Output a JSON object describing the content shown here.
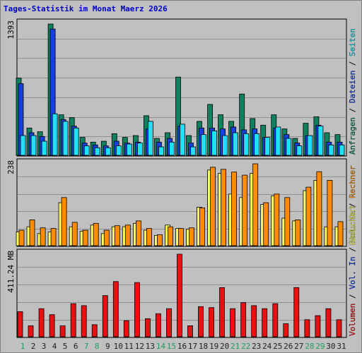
{
  "chart_data": {
    "type": "bar",
    "title": "Tages-Statistik im Monat Maerz 2026",
    "colors": {
      "title": "#0000cc",
      "background": "#c0c0c0",
      "plot_bg": "#c0c0c0",
      "frame": "#000000",
      "grid": "#909090",
      "anfragen": "#0f8060",
      "dateien": "#1540e0",
      "seiten": "#20e0f8",
      "besuche": "#ffff60",
      "rechner": "#ff8c00",
      "volumen": "#e81010",
      "weekday_label": "#202020",
      "weekend_label": "#20a060"
    },
    "x": [
      "1",
      "2",
      "3",
      "4",
      "5",
      "6",
      "7",
      "8",
      "9",
      "10",
      "11",
      "12",
      "13",
      "14",
      "15",
      "16",
      "17",
      "18",
      "19",
      "20",
      "21",
      "22",
      "23",
      "24",
      "25",
      "26",
      "27",
      "28",
      "29",
      "30",
      "31"
    ],
    "weekend_days": [
      "1",
      "7",
      "8",
      "14",
      "15",
      "21",
      "22",
      "28",
      "29"
    ],
    "panels": [
      {
        "id": "traffic",
        "ytick": "1393",
        "ymax": 1393,
        "legend": [
          {
            "text": "Anfragen",
            "color": "#0f8060"
          },
          {
            "text": "Dateien",
            "color": "#1540e0"
          },
          {
            "text": "Seiten",
            "color": "#20e0f8"
          }
        ],
        "series": [
          {
            "name": "Anfragen",
            "color": "#0f8060",
            "values": [
              820,
              290,
              250,
              1393,
              430,
              400,
              190,
              140,
              150,
              230,
              190,
              210,
              420,
              180,
              240,
              830,
              210,
              360,
              540,
              430,
              360,
              650,
              390,
              320,
              430,
              280,
              180,
              340,
              410,
              240,
              220
            ]
          },
          {
            "name": "Dateien",
            "color": "#1540e0",
            "values": [
              760,
              240,
              200,
              1340,
              380,
              310,
              130,
              110,
              100,
              150,
              130,
              140,
              280,
              140,
              180,
              310,
              130,
              290,
              290,
              280,
              300,
              270,
              280,
              190,
              290,
              220,
              130,
              210,
              320,
              140,
              140
            ]
          },
          {
            "name": "Seiten",
            "color": "#20e0f8",
            "values": [
              210,
              210,
              150,
              440,
              360,
              290,
              100,
              80,
              80,
              100,
              120,
              130,
              360,
              90,
              140,
              330,
              90,
              220,
              260,
              210,
              240,
              230,
              230,
              190,
              300,
              180,
              100,
              210,
              310,
              110,
              110
            ]
          }
        ]
      },
      {
        "id": "visits",
        "ytick": "238",
        "ymax": 238,
        "legend": [
          {
            "text": "Besuche",
            "color": "#ffff60"
          },
          {
            "text": "Rechner",
            "color": "#ff8c00"
          }
        ],
        "series": [
          {
            "name": "Besuche",
            "color": "#ffff60",
            "values": [
              40,
              55,
              35,
              40,
              125,
              55,
              42,
              60,
              35,
              55,
              55,
              65,
              45,
              30,
              60,
              50,
              48,
              112,
              220,
              210,
              150,
              140,
              210,
              120,
              145,
              80,
              72,
              160,
              190,
              55,
              55
            ]
          },
          {
            "name": "Rechner",
            "color": "#ff8c00",
            "values": [
              45,
              75,
              52,
              50,
              140,
              68,
              45,
              65,
              45,
              58,
              60,
              72,
              50,
              32,
              55,
              50,
              52,
              110,
              228,
              222,
              214,
              205,
              238,
              125,
              150,
              140,
              75,
              170,
              215,
              190,
              70
            ]
          }
        ]
      },
      {
        "id": "volume",
        "ytick": "411.24 MB",
        "ymax": 411.24,
        "legend": [
          {
            "text": "Volumen",
            "color": "#e81010"
          },
          {
            "text": "Vol. In",
            "color": "#1540e0"
          },
          {
            "text": "Vol. Out",
            "color": "#ffff60"
          }
        ],
        "series": [
          {
            "name": "Volumen",
            "color": "#e81010",
            "values": [
              125,
              55,
              140,
              110,
              55,
              165,
              155,
              60,
              205,
              275,
              80,
              270,
              90,
              115,
              140,
              411.24,
              55,
              150,
              145,
              245,
              140,
              170,
              155,
              140,
              165,
              65,
              245,
              85,
              105,
              140,
              85
            ]
          }
        ]
      }
    ]
  }
}
